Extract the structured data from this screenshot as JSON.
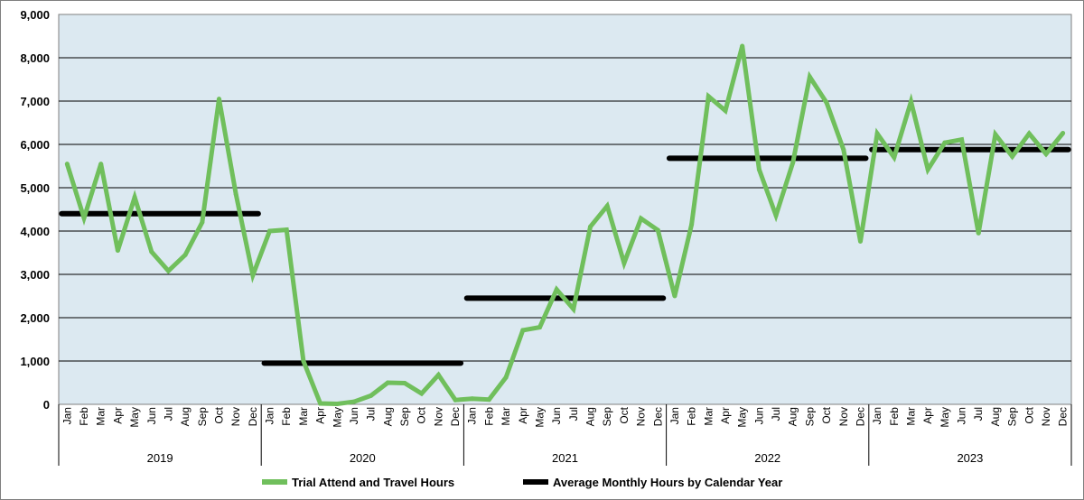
{
  "chart_data": {
    "type": "line",
    "title": "",
    "xlabel": "",
    "ylabel": "",
    "ylim": [
      0,
      9000
    ],
    "y_ticks": [
      "0",
      "1,000",
      "2,000",
      "3,000",
      "4,000",
      "5,000",
      "6,000",
      "7,000",
      "8,000",
      "9,000"
    ],
    "y_tick_values": [
      0,
      1000,
      2000,
      3000,
      4000,
      5000,
      6000,
      7000,
      8000,
      9000
    ],
    "grid": true,
    "legend_position": "bottom",
    "months": [
      "Jan",
      "Feb",
      "Mar",
      "Apr",
      "May",
      "Jun",
      "Jul",
      "Aug",
      "Sep",
      "Oct",
      "Nov",
      "Dec"
    ],
    "years": [
      "2019",
      "2020",
      "2021",
      "2022",
      "2023"
    ],
    "series": [
      {
        "name": "Trial Attend and Travel Hours",
        "color": "#70bf5c",
        "values": [
          5550,
          4300,
          5550,
          3550,
          4780,
          3520,
          3080,
          3450,
          4200,
          7050,
          4850,
          2980,
          4000,
          4030,
          1000,
          20,
          10,
          60,
          200,
          500,
          490,
          250,
          680,
          100,
          130,
          110,
          620,
          1710,
          1780,
          2650,
          2200,
          4100,
          4580,
          3260,
          4290,
          4020,
          2500,
          4150,
          7110,
          6780,
          8270,
          5420,
          4360,
          5580,
          7560,
          6960,
          5880,
          3760,
          6250,
          5700,
          6990,
          5420,
          6040,
          6110,
          3950,
          6230,
          5720,
          6250,
          5780,
          6260
        ]
      },
      {
        "name": "Average Monthly Hours by Calendar Year",
        "color": "#000000",
        "values": [
          4400,
          950,
          2450,
          5680,
          5880
        ]
      }
    ]
  }
}
